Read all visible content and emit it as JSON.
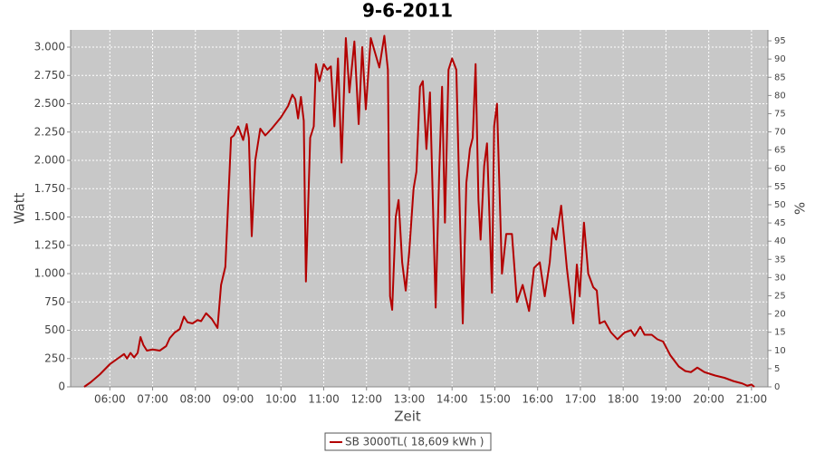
{
  "chart_data": {
    "type": "line",
    "title": "9-6-2011",
    "x_label": "Zeit",
    "y_label": "Watt",
    "y2_label": "%",
    "x": [
      "05:24",
      "05:33",
      "05:46",
      "06:00",
      "06:11",
      "06:20",
      "06:24",
      "06:29",
      "06:34",
      "06:39",
      "06:43",
      "06:47",
      "06:52",
      "07:00",
      "07:10",
      "07:19",
      "07:24",
      "07:31",
      "07:38",
      "07:44",
      "07:49",
      "07:56",
      "08:03",
      "08:08",
      "08:15",
      "08:23",
      "08:31",
      "08:36",
      "08:42",
      "08:50",
      "08:54",
      "09:00",
      "09:07",
      "09:12",
      "09:15",
      "09:19",
      "09:24",
      "09:31",
      "09:38",
      "09:47",
      "10:00",
      "10:10",
      "10:16",
      "10:20",
      "10:24",
      "10:28",
      "10:32",
      "10:35",
      "10:41",
      "10:46",
      "10:49",
      "10:54",
      "11:00",
      "11:05",
      "11:10",
      "11:15",
      "11:20",
      "11:25",
      "11:31",
      "11:36",
      "11:43",
      "11:49",
      "11:54",
      "11:59",
      "12:06",
      "12:12",
      "12:18",
      "12:25",
      "12:30",
      "12:33",
      "12:36",
      "12:41",
      "12:45",
      "12:50",
      "12:55",
      "13:00",
      "13:06",
      "13:10",
      "13:15",
      "13:19",
      "13:24",
      "13:29",
      "13:37",
      "13:42",
      "13:46",
      "13:50",
      "13:55",
      "14:00",
      "14:06",
      "14:11",
      "14:15",
      "14:20",
      "14:25",
      "14:29",
      "14:33",
      "14:37",
      "14:40",
      "14:45",
      "14:49",
      "14:56",
      "14:59",
      "15:03",
      "15:10",
      "15:16",
      "15:24",
      "15:31",
      "15:39",
      "15:48",
      "15:55",
      "16:03",
      "16:10",
      "16:17",
      "16:21",
      "16:26",
      "16:33",
      "16:41",
      "16:50",
      "16:55",
      "16:59",
      "17:05",
      "17:11",
      "17:18",
      "17:23",
      "17:27",
      "17:34",
      "17:43",
      "17:52",
      "18:02",
      "18:11",
      "18:16",
      "18:24",
      "18:30",
      "18:40",
      "18:48",
      "18:56",
      "19:06",
      "19:18",
      "19:27",
      "19:35",
      "19:44",
      "19:54",
      "20:09",
      "20:22",
      "20:35",
      "20:47",
      "20:54",
      "21:00",
      "21:04"
    ],
    "series": [
      {
        "name": "SB 3000TL( 18,609 kWh )",
        "color": "#b30000",
        "values": [
          0,
          40,
          110,
          200,
          250,
          290,
          250,
          300,
          260,
          300,
          440,
          370,
          320,
          330,
          320,
          360,
          430,
          480,
          510,
          620,
          570,
          560,
          590,
          580,
          650,
          600,
          520,
          900,
          1060,
          2200,
          2220,
          2300,
          2180,
          2320,
          2200,
          1330,
          2000,
          2280,
          2220,
          2280,
          2380,
          2480,
          2580,
          2540,
          2370,
          2560,
          2350,
          930,
          2200,
          2300,
          2850,
          2700,
          2850,
          2800,
          2830,
          2300,
          2900,
          1980,
          3080,
          2600,
          3050,
          2320,
          3000,
          2450,
          3080,
          2950,
          2820,
          3100,
          2800,
          800,
          680,
          1500,
          1650,
          1100,
          850,
          1200,
          1750,
          1900,
          2650,
          2700,
          2100,
          2600,
          700,
          1900,
          2650,
          1450,
          2800,
          2900,
          2800,
          1500,
          560,
          1800,
          2100,
          2200,
          2850,
          1650,
          1300,
          1950,
          2150,
          830,
          2300,
          2500,
          1000,
          1350,
          1350,
          750,
          900,
          670,
          1050,
          1100,
          800,
          1100,
          1400,
          1300,
          1600,
          1050,
          560,
          1080,
          800,
          1450,
          1000,
          880,
          850,
          560,
          580,
          480,
          420,
          480,
          500,
          450,
          530,
          460,
          460,
          420,
          400,
          280,
          180,
          140,
          130,
          170,
          130,
          100,
          80,
          50,
          30,
          10,
          20,
          0
        ]
      }
    ],
    "xlim": [
      "05:05",
      "21:23"
    ],
    "xticks": [
      "06:00",
      "07:00",
      "08:00",
      "09:00",
      "10:00",
      "11:00",
      "12:00",
      "13:00",
      "14:00",
      "15:00",
      "16:00",
      "17:00",
      "18:00",
      "19:00",
      "20:00",
      "21:00"
    ],
    "ylim": [
      0,
      3152
    ],
    "yticks": [
      0,
      {
        "value": 250,
        "label": "250"
      },
      500,
      750,
      {
        "value": 1000,
        "label": "1.000"
      },
      {
        "value": 1250,
        "label": "1.250"
      },
      {
        "value": 1500,
        "label": "1.500"
      },
      {
        "value": 1750,
        "label": "1.750"
      },
      {
        "value": 2000,
        "label": "2.000"
      },
      {
        "value": 2250,
        "label": "2.250"
      },
      {
        "value": 2500,
        "label": "2.500"
      },
      {
        "value": 2750,
        "label": "2.750"
      },
      {
        "value": 3000,
        "label": "3.000"
      }
    ],
    "y2lim": [
      0,
      98
    ],
    "y2ticks": [
      0,
      5,
      10,
      15,
      20,
      25,
      30,
      35,
      40,
      45,
      50,
      55,
      60,
      65,
      70,
      75,
      80,
      85,
      90,
      95
    ],
    "grid": true
  }
}
